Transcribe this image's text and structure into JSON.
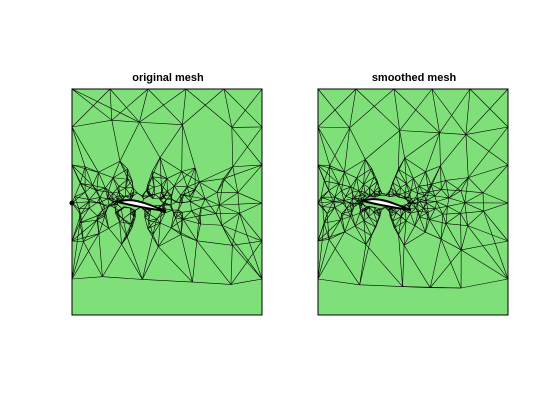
{
  "figure": {
    "panels": [
      {
        "title": "original mesh",
        "fill": "#7FE07A",
        "edge": "#000000"
      },
      {
        "title": "smoothed mesh",
        "fill": "#7FE07A",
        "edge": "#000000"
      }
    ]
  },
  "colors": {
    "background": "#ffffff",
    "mesh_fill": "#7FE07A",
    "mesh_edge": "#000000",
    "airfoil": "#ffffff"
  }
}
